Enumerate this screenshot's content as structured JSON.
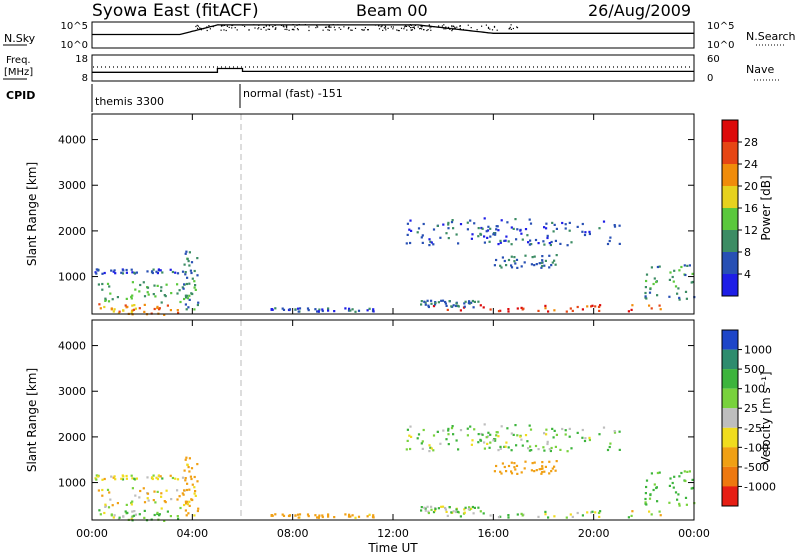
{
  "header": {
    "station": "Syowa East (fitACF)",
    "beam": "Beam 00",
    "date": "26/Aug/2009"
  },
  "noise_panel": {
    "left_label": "N.Sky",
    "right_label": "N.Search",
    "left_ticks": [
      "10^5",
      "10^0"
    ],
    "right_ticks": [
      "10^5",
      "10^0"
    ]
  },
  "freq_panel": {
    "left_label": "Freq.",
    "left_unit": "[MHz]",
    "right_label": "Nave",
    "left_ticks": [
      "18",
      "8"
    ],
    "right_ticks": [
      "60",
      "0"
    ],
    "freq_steps": [
      {
        "t": 0.0,
        "mhz": 11.2
      },
      {
        "t": 5.0,
        "mhz": 12.8
      },
      {
        "t": 6.0,
        "mhz": 11.6
      },
      {
        "t": 24.0,
        "mhz": 11.6
      }
    ]
  },
  "cpid_panel": {
    "label": "CPID",
    "modes": [
      {
        "name": "themis 3300",
        "start_ut": 0.0,
        "end_ut": 6.0
      },
      {
        "name": "normal (fast) -151",
        "start_ut": 6.0,
        "end_ut": 24.0
      }
    ]
  },
  "x_axis": {
    "title": "Time UT",
    "ticks": [
      "00:00",
      "04:00",
      "08:00",
      "12:00",
      "16:00",
      "20:00",
      "00:00"
    ],
    "range": [
      0,
      24
    ]
  },
  "y_axis": {
    "title": "Slant Range [km]",
    "ticks": [
      "1000",
      "2000",
      "3000",
      "4000"
    ],
    "range": [
      180,
      4560
    ]
  },
  "power_colorbar": {
    "title": "Power [dB]",
    "ticks": [
      "4",
      "8",
      "12",
      "16",
      "20",
      "24",
      "28"
    ],
    "colors": [
      "#1e1ee6",
      "#2850b4",
      "#3c8c64",
      "#5ac83c",
      "#e6d21e",
      "#f08c0a",
      "#e64614",
      "#dc0a0a"
    ]
  },
  "velocity_colorbar": {
    "title": "Velocity [m s⁻¹]",
    "ticks": [
      "1000",
      "500",
      "100",
      "25",
      "-25",
      "-100",
      "-500",
      "-1000"
    ],
    "colors": [
      "#1e46c8",
      "#2e8c6e",
      "#3cb43c",
      "#78d23c",
      "#bebebe",
      "#f0dc1e",
      "#f0a014",
      "#ee780f",
      "#e61e14"
    ]
  },
  "chart_data": [
    {
      "type": "heatmap",
      "title": "Power",
      "xlabel": "Time UT",
      "ylabel": "Slant Range [km]",
      "xlim": [
        0,
        24
      ],
      "ylim": [
        180,
        4560
      ],
      "colorbar_label": "Power [dB]",
      "colorbar_range": [
        0,
        32
      ],
      "regions": [
        {
          "t0": 0.1,
          "t1": 3.5,
          "r0": 180,
          "r1": 440,
          "value": 22
        },
        {
          "t0": 0.1,
          "t1": 3.8,
          "r0": 440,
          "r1": 900,
          "value": 12
        },
        {
          "t0": 0.1,
          "t1": 3.6,
          "r0": 1080,
          "r1": 1180,
          "value": 6
        },
        {
          "t0": 3.6,
          "t1": 4.2,
          "r0": 300,
          "r1": 1600,
          "value": 10
        },
        {
          "t0": 7.0,
          "t1": 11.5,
          "r0": 250,
          "r1": 330,
          "value": 6
        },
        {
          "t0": 13.5,
          "t1": 22.8,
          "r0": 250,
          "r1": 400,
          "value": 26
        },
        {
          "t0": 13.0,
          "t1": 15.5,
          "r0": 350,
          "r1": 500,
          "value": 8
        },
        {
          "t0": 16.0,
          "t1": 18.5,
          "r0": 1200,
          "r1": 1500,
          "value": 8
        },
        {
          "t0": 12.5,
          "t1": 21.0,
          "r0": 1700,
          "r1": 2300,
          "value": 6
        },
        {
          "t0": 22.0,
          "t1": 24.0,
          "r0": 500,
          "r1": 1300,
          "value": 10
        }
      ]
    },
    {
      "type": "heatmap",
      "title": "Velocity",
      "xlabel": "Time UT",
      "ylabel": "Slant Range [km]",
      "xlim": [
        0,
        24
      ],
      "ylim": [
        180,
        4560
      ],
      "colorbar_label": "Velocity [m s⁻¹]",
      "colorbar_range": [
        -1000,
        1000
      ],
      "regions": [
        {
          "t0": 0.1,
          "t1": 3.5,
          "r0": 180,
          "r1": 440,
          "value": 80
        },
        {
          "t0": 0.1,
          "t1": 3.8,
          "r0": 440,
          "r1": 900,
          "value": -80
        },
        {
          "t0": 0.1,
          "t1": 3.6,
          "r0": 1080,
          "r1": 1180,
          "value": 0
        },
        {
          "t0": 3.6,
          "t1": 4.2,
          "r0": 300,
          "r1": 1600,
          "value": -150
        },
        {
          "t0": 7.0,
          "t1": 11.5,
          "r0": 250,
          "r1": 330,
          "value": -200
        },
        {
          "t0": 13.5,
          "t1": 22.8,
          "r0": 250,
          "r1": 400,
          "value": 10
        },
        {
          "t0": 13.0,
          "t1": 15.5,
          "r0": 350,
          "r1": 500,
          "value": 60
        },
        {
          "t0": 16.0,
          "t1": 18.5,
          "r0": 1200,
          "r1": 1500,
          "value": -300
        },
        {
          "t0": 12.5,
          "t1": 21.0,
          "r0": 1700,
          "r1": 2300,
          "value": 80
        },
        {
          "t0": 22.0,
          "t1": 24.0,
          "r0": 500,
          "r1": 1300,
          "value": 150
        }
      ]
    }
  ]
}
